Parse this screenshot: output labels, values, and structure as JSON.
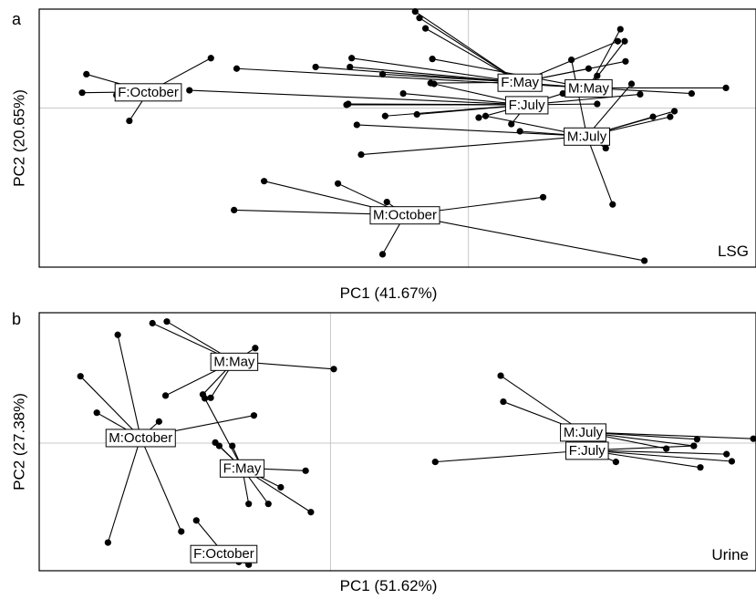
{
  "chart_data": [
    {
      "panel_letter": "a",
      "type": "scatter",
      "xlabel": "PC1 (41.67%)",
      "ylabel": "PC2 (20.65%)",
      "tag": "LSG",
      "xlim": [
        -0.5,
        0.335
      ],
      "ylim": [
        -0.198,
        0.123
      ],
      "reference_lines": {
        "x": 0,
        "y": 0
      },
      "grid": false,
      "groups": [
        {
          "label": "F:October",
          "centroid": [
            -0.373,
            0.02
          ],
          "points": [
            [
              -0.445,
              0.042
            ],
            [
              -0.45,
              0.019
            ],
            [
              -0.41,
              0.016
            ],
            [
              -0.395,
              -0.016
            ],
            [
              -0.3,
              0.062
            ]
          ]
        },
        {
          "label": "M:October",
          "centroid": [
            -0.074,
            -0.133
          ],
          "points": [
            [
              -0.273,
              -0.127
            ],
            [
              -0.238,
              -0.091
            ],
            [
              -0.152,
              -0.094
            ],
            [
              -0.095,
              -0.117
            ],
            [
              -0.1,
              -0.182
            ],
            [
              0.087,
              -0.111
            ],
            [
              0.205,
              -0.19
            ]
          ]
        },
        {
          "label": "F:May",
          "centroid": [
            0.06,
            0.032
          ],
          "points": [
            [
              -0.062,
              0.12
            ],
            [
              -0.057,
              0.112
            ],
            [
              -0.05,
              0.099
            ],
            [
              -0.136,
              0.062
            ],
            [
              -0.138,
              0.051
            ],
            [
              -0.1,
              0.042
            ],
            [
              -0.044,
              0.031
            ],
            [
              0.174,
              0.083
            ],
            [
              0.183,
              0.058
            ],
            [
              0.14,
              0.049
            ]
          ]
        },
        {
          "label": "M:May",
          "centroid": [
            0.14,
            0.025
          ],
          "points": [
            [
              0.177,
              0.098
            ],
            [
              0.182,
              0.083
            ],
            [
              -0.042,
              0.061
            ],
            [
              -0.178,
              0.051
            ],
            [
              -0.27,
              0.049
            ],
            [
              0.13,
              0.02
            ],
            [
              0.15,
              0.04
            ],
            [
              0.26,
              0.018
            ],
            [
              0.3,
              0.025
            ]
          ]
        },
        {
          "label": "F:July",
          "centroid": [
            0.068,
            0.004
          ],
          "points": [
            [
              -0.076,
              0.018
            ],
            [
              -0.097,
              -0.01
            ],
            [
              -0.06,
              -0.008
            ],
            [
              -0.04,
              0.03
            ],
            [
              0.012,
              -0.012
            ],
            [
              0.05,
              -0.02
            ],
            [
              0.08,
              0.01
            ],
            [
              0.11,
              0.018
            ],
            [
              0.15,
              0.005
            ],
            [
              0.2,
              0.017
            ],
            [
              -0.325,
              0.022
            ],
            [
              -0.14,
              0.005
            ],
            [
              -0.142,
              0.004
            ]
          ]
        },
        {
          "label": "M:July",
          "centroid": [
            0.138,
            -0.035
          ],
          "points": [
            [
              -0.125,
              -0.058
            ],
            [
              -0.13,
              -0.021
            ],
            [
              0.02,
              -0.01
            ],
            [
              0.06,
              -0.029
            ],
            [
              0.16,
              -0.05
            ],
            [
              0.168,
              -0.12
            ],
            [
              0.215,
              -0.011
            ],
            [
              0.235,
              -0.011
            ],
            [
              0.24,
              -0.004
            ],
            [
              0.19,
              0.03
            ],
            [
              0.12,
              0.06
            ]
          ]
        }
      ]
    },
    {
      "panel_letter": "b",
      "type": "scatter",
      "xlabel": "PC1 (51.62%)",
      "ylabel": "PC2 (27.38%)",
      "tag": "Urine",
      "xlim": [
        -0.445,
        0.65
      ],
      "ylim": [
        -0.231,
        0.236
      ],
      "reference_lines": {
        "x": 0,
        "y": 0
      },
      "grid": false,
      "groups": [
        {
          "label": "M:May",
          "centroid": [
            -0.147,
            0.148
          ],
          "points": [
            [
              -0.272,
              0.217
            ],
            [
              -0.25,
              0.22
            ],
            [
              -0.115,
              0.172
            ],
            [
              0.005,
              0.134
            ],
            [
              -0.195,
              0.088
            ],
            [
              -0.183,
              0.082
            ],
            [
              -0.252,
              0.086
            ]
          ]
        },
        {
          "label": "M:October",
          "centroid": [
            -0.29,
            0.01
          ],
          "points": [
            [
              -0.382,
              0.121
            ],
            [
              -0.357,
              0.055
            ],
            [
              -0.325,
              0.196
            ],
            [
              -0.262,
              0.039
            ],
            [
              -0.34,
              -0.18
            ],
            [
              -0.228,
              -0.16
            ],
            [
              -0.117,
              0.05
            ]
          ]
        },
        {
          "label": "F:May",
          "centroid": [
            -0.135,
            -0.045
          ],
          "points": [
            [
              -0.192,
              0.081
            ],
            [
              -0.176,
              0.001
            ],
            [
              -0.17,
              -0.005
            ],
            [
              -0.15,
              -0.005
            ],
            [
              -0.125,
              -0.11
            ],
            [
              -0.095,
              -0.11
            ],
            [
              -0.076,
              -0.08
            ],
            [
              -0.038,
              -0.05
            ],
            [
              -0.03,
              -0.125
            ]
          ]
        },
        {
          "label": "F:October",
          "centroid": [
            -0.163,
            -0.2
          ],
          "points": [
            [
              -0.205,
              -0.14
            ],
            [
              -0.14,
              -0.215
            ],
            [
              -0.125,
              -0.22
            ],
            [
              -0.125,
              -0.2
            ]
          ]
        },
        {
          "label": "M:July",
          "centroid": [
            0.386,
            0.02
          ],
          "points": [
            [
              0.264,
              0.075
            ],
            [
              0.26,
              0.122
            ],
            [
              0.56,
              0.007
            ],
            [
              0.555,
              -0.005
            ],
            [
              0.513,
              -0.01
            ],
            [
              0.646,
              0.008
            ]
          ]
        },
        {
          "label": "F:July",
          "centroid": [
            0.392,
            -0.013
          ],
          "points": [
            [
              0.16,
              -0.034
            ],
            [
              0.436,
              -0.034
            ],
            [
              0.605,
              -0.02
            ],
            [
              0.613,
              -0.033
            ],
            [
              0.565,
              -0.044
            ],
            [
              0.555,
              -0.005
            ]
          ]
        }
      ]
    }
  ]
}
